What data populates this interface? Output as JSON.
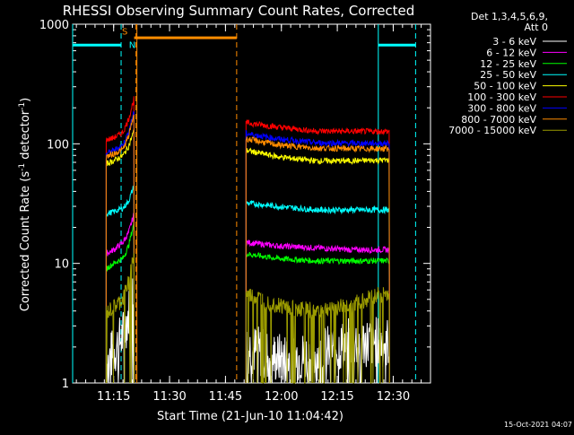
{
  "chart_data": {
    "type": "line",
    "title": "RHESSI Observing Summary Count Rates, Corrected",
    "xlabel": "Start Time (21-Jun-10 11:04:42)",
    "ylabel_main": "Corrected Count Rate (s",
    "ylabel_sup": "-1",
    "ylabel_mid": " detector",
    "ylabel_sup2": "-1",
    "ylabel_end": ")",
    "y_scale": "log",
    "ylim": [
      1,
      1000
    ],
    "xlim_minutes": [
      0,
      96
    ],
    "x_ticks": [
      {
        "min": 11,
        "label": "11:15"
      },
      {
        "min": 26,
        "label": "11:30"
      },
      {
        "min": 41,
        "label": "11:45"
      },
      {
        "min": 56,
        "label": "12:00"
      },
      {
        "min": 71,
        "label": "12:15"
      },
      {
        "min": 86,
        "label": "12:30"
      }
    ],
    "y_ticks": [
      {
        "value": 1,
        "label": "1"
      },
      {
        "value": 10,
        "label": "10"
      },
      {
        "value": 100,
        "label": "100"
      },
      {
        "value": 1000,
        "label": "1000"
      }
    ],
    "legend_header": [
      "Det 1,3,4,5,6,9,",
      "Att 0"
    ],
    "legend_position": "top-right",
    "series": [
      {
        "name": "3 - 6 keV",
        "color": "#ffffff",
        "segments": [
          {
            "x": [
              9,
              11,
              13.5,
              15,
              16.5
            ],
            "y": [
              1.5,
              1.8,
              2.5,
              3.8,
              6
            ]
          },
          {
            "x": [
              46.5,
              55,
              65,
              75,
              82,
              85
            ],
            "y": [
              2,
              1.6,
              1.7,
              2.2,
              2.2,
              2.2
            ]
          }
        ]
      },
      {
        "name": "6 - 12 keV",
        "color": "#ff00ff",
        "segments": [
          {
            "x": [
              9,
              11,
              13.5,
              15,
              16.5
            ],
            "y": [
              12,
              13,
              15,
              18,
              26
            ]
          },
          {
            "x": [
              46.5,
              55,
              65,
              75,
              82,
              85
            ],
            "y": [
              15,
              14,
              13.5,
              13,
              13,
              13
            ]
          }
        ]
      },
      {
        "name": "12 - 25 keV",
        "color": "#00ff00",
        "segments": [
          {
            "x": [
              9,
              11,
              13.5,
              15,
              16.5
            ],
            "y": [
              9,
              10,
              11,
              14,
              22
            ]
          },
          {
            "x": [
              46.5,
              55,
              65,
              75,
              82,
              85
            ],
            "y": [
              12,
              11,
              10.5,
              10.5,
              10.5,
              10.5
            ]
          }
        ]
      },
      {
        "name": "25 - 50 keV",
        "color": "#00ffff",
        "segments": [
          {
            "x": [
              9,
              11,
              13.5,
              15,
              16.5
            ],
            "y": [
              26,
              27,
              29,
              33,
              45
            ]
          },
          {
            "x": [
              46.5,
              55,
              65,
              75,
              82,
              85
            ],
            "y": [
              32,
              30,
              28,
              28,
              28,
              28
            ]
          }
        ]
      },
      {
        "name": "50 - 100 keV",
        "color": "#ffff00",
        "segments": [
          {
            "x": [
              9,
              11,
              13.5,
              15,
              16.5
            ],
            "y": [
              68,
              72,
              80,
              95,
              130
            ]
          },
          {
            "x": [
              46.5,
              55,
              65,
              75,
              82,
              85
            ],
            "y": [
              88,
              78,
              72,
              72,
              73,
              73
            ]
          }
        ]
      },
      {
        "name": "100 - 300 keV",
        "color": "#ff0000",
        "segments": [
          {
            "x": [
              9,
              11,
              13.5,
              15,
              16.5
            ],
            "y": [
              108,
              112,
              125,
              160,
              240
            ]
          },
          {
            "x": [
              46.5,
              55,
              65,
              75,
              82,
              85
            ],
            "y": [
              150,
              138,
              128,
              127,
              127,
              127
            ]
          }
        ]
      },
      {
        "name": "300 - 800 keV",
        "color": "#0000ff",
        "segments": [
          {
            "x": [
              9,
              11,
              13.5,
              15,
              16.5
            ],
            "y": [
              83,
              88,
              98,
              125,
              190
            ]
          },
          {
            "x": [
              46.5,
              55,
              65,
              75,
              82,
              85
            ],
            "y": [
              122,
              110,
              102,
              101,
              101,
              101
            ]
          }
        ]
      },
      {
        "name": "800 - 7000 keV",
        "color": "#ff8c00",
        "segments": [
          {
            "x": [
              9,
              11,
              13.5,
              15,
              16.5
            ],
            "y": [
              78,
              82,
              90,
              115,
              180
            ]
          },
          {
            "x": [
              46.5,
              55,
              65,
              75,
              82,
              85
            ],
            "y": [
              110,
              98,
              92,
              91,
              91,
              91
            ]
          }
        ]
      },
      {
        "name": "7000 - 15000 keV",
        "color": "#9b9b00",
        "segments": [
          {
            "x": [
              9,
              11,
              13.5,
              15,
              16.5
            ],
            "y": [
              3.8,
              4.2,
              5,
              7,
              12
            ]
          },
          {
            "x": [
              46.5,
              55,
              65,
              75,
              82,
              85
            ],
            "y": [
              5.5,
              4.5,
              4,
              4.5,
              5.5,
              5.5
            ]
          }
        ]
      }
    ],
    "markers": {
      "cyan_solid_x": [
        0,
        82
      ],
      "cyan_dashed_x": [
        13,
        92
      ],
      "orange_dashed_x": [
        17,
        44
      ],
      "orange_solid_x": [
        17
      ],
      "cyan_bars": [
        {
          "x": [
            0,
            13
          ],
          "y": 670
        },
        {
          "x": [
            82,
            92
          ],
          "y": 670
        }
      ],
      "orange_bar": {
        "x": [
          16.5,
          44
        ],
        "y": 770
      },
      "letters": [
        {
          "text": "S",
          "color": "#ff8c00",
          "x": 14,
          "y": 880
        },
        {
          "text": "N",
          "color": "#00ffff",
          "x": 16,
          "y": 680
        }
      ]
    },
    "footer_timestamp": "15-Oct-2021 04:07"
  }
}
